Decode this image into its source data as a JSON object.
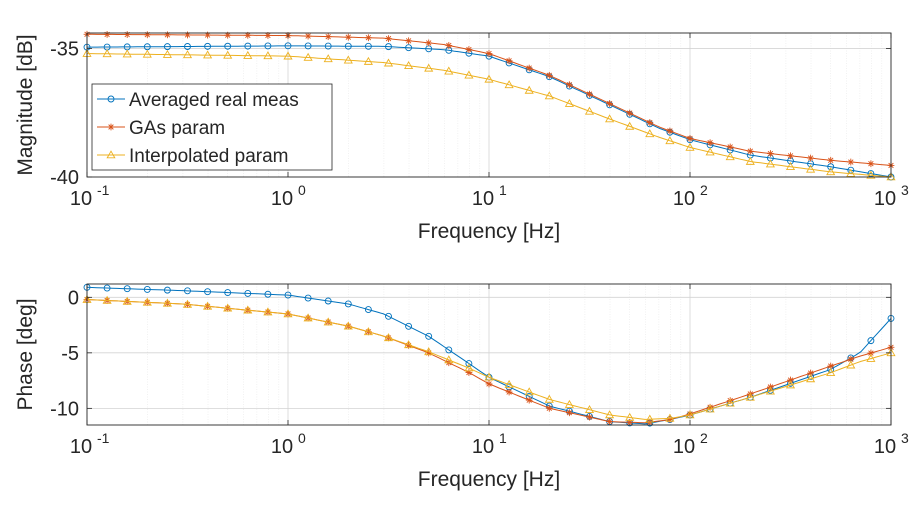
{
  "chart_data": [
    {
      "type": "line",
      "xlabel": "Frequency [Hz]",
      "ylabel": "Magnitude [dB]",
      "xscale": "log",
      "xlim": [
        0.1,
        1000
      ],
      "ylim": [
        -40,
        -34.4
      ],
      "xticks": [
        {
          "base": "10",
          "exp": "-1",
          "value": 0.1
        },
        {
          "base": "10",
          "exp": "0",
          "value": 1
        },
        {
          "base": "10",
          "exp": "1",
          "value": 10
        },
        {
          "base": "10",
          "exp": "2",
          "value": 100
        },
        {
          "base": "10",
          "exp": "3",
          "value": 1000
        }
      ],
      "yticks": [
        {
          "label": "-35",
          "value": -35
        },
        {
          "label": "-40",
          "value": -40
        }
      ],
      "grid": true,
      "legend_position": "left",
      "series": [
        {
          "name": "Averaged real meas",
          "color": "#0072BD",
          "marker": "circle",
          "x": [
            0.1,
            1,
            3,
            6,
            10,
            20,
            40,
            70,
            100,
            200,
            500,
            1000
          ],
          "y": [
            -34.95,
            -34.9,
            -34.92,
            -35.05,
            -35.3,
            -36.1,
            -37.2,
            -38.1,
            -38.55,
            -39.15,
            -39.6,
            -40.0
          ]
        },
        {
          "name": "GAs param",
          "color": "#D95319",
          "marker": "asterisk",
          "x": [
            0.1,
            1,
            3,
            6,
            10,
            20,
            40,
            70,
            100,
            200,
            500,
            1000
          ],
          "y": [
            -34.45,
            -34.5,
            -34.6,
            -34.85,
            -35.2,
            -36.05,
            -37.15,
            -38.05,
            -38.5,
            -39.0,
            -39.35,
            -39.55
          ]
        },
        {
          "name": "Interpolated param",
          "color": "#EDB120",
          "marker": "triangle",
          "x": [
            0.1,
            1,
            3,
            6,
            10,
            20,
            40,
            70,
            100,
            200,
            500,
            1000
          ],
          "y": [
            -35.2,
            -35.3,
            -35.55,
            -35.85,
            -36.2,
            -36.85,
            -37.75,
            -38.45,
            -38.85,
            -39.4,
            -39.8,
            -40.0
          ]
        }
      ]
    },
    {
      "type": "line",
      "xlabel": "Frequency [Hz]",
      "ylabel": "Phase [deg]",
      "xscale": "log",
      "xlim": [
        0.1,
        1000
      ],
      "ylim": [
        -11.5,
        1.2
      ],
      "xticks": [
        {
          "base": "10",
          "exp": "-1",
          "value": 0.1
        },
        {
          "base": "10",
          "exp": "0",
          "value": 1
        },
        {
          "base": "10",
          "exp": "1",
          "value": 10
        },
        {
          "base": "10",
          "exp": "2",
          "value": 100
        },
        {
          "base": "10",
          "exp": "3",
          "value": 1000
        }
      ],
      "yticks": [
        {
          "label": "0",
          "value": 0
        },
        {
          "label": "-5",
          "value": -5
        },
        {
          "label": "-10",
          "value": -10
        }
      ],
      "grid": true,
      "series": [
        {
          "name": "Averaged real meas",
          "color": "#0072BD",
          "marker": "circle",
          "x": [
            0.1,
            0.3,
            1,
            2,
            3,
            5,
            8,
            10,
            20,
            40,
            60,
            80,
            100,
            200,
            500,
            700,
            1000
          ],
          "y": [
            0.9,
            0.6,
            0.2,
            -0.6,
            -1.5,
            -3.5,
            -6.0,
            -7.2,
            -9.8,
            -11.2,
            -11.4,
            -11.0,
            -10.6,
            -9.0,
            -6.5,
            -5.0,
            -1.9
          ]
        },
        {
          "name": "GAs param",
          "color": "#D95319",
          "marker": "asterisk",
          "x": [
            0.1,
            0.3,
            1,
            2,
            3,
            5,
            8,
            10,
            20,
            40,
            60,
            80,
            100,
            200,
            500,
            700,
            1000
          ],
          "y": [
            -0.2,
            -0.6,
            -1.5,
            -2.6,
            -3.5,
            -5.0,
            -6.8,
            -7.8,
            -10.0,
            -11.2,
            -11.3,
            -11.0,
            -10.5,
            -8.7,
            -6.2,
            -5.3,
            -4.5
          ]
        },
        {
          "name": "Interpolated param",
          "color": "#EDB120",
          "marker": "triangle",
          "x": [
            0.1,
            0.3,
            1,
            2,
            3,
            5,
            8,
            10,
            20,
            40,
            60,
            80,
            100,
            200,
            500,
            700,
            1000
          ],
          "y": [
            -0.2,
            -0.6,
            -1.5,
            -2.6,
            -3.5,
            -4.9,
            -6.4,
            -7.2,
            -9.2,
            -10.6,
            -11.0,
            -10.9,
            -10.6,
            -9.0,
            -6.8,
            -5.8,
            -5.0
          ]
        }
      ]
    }
  ]
}
